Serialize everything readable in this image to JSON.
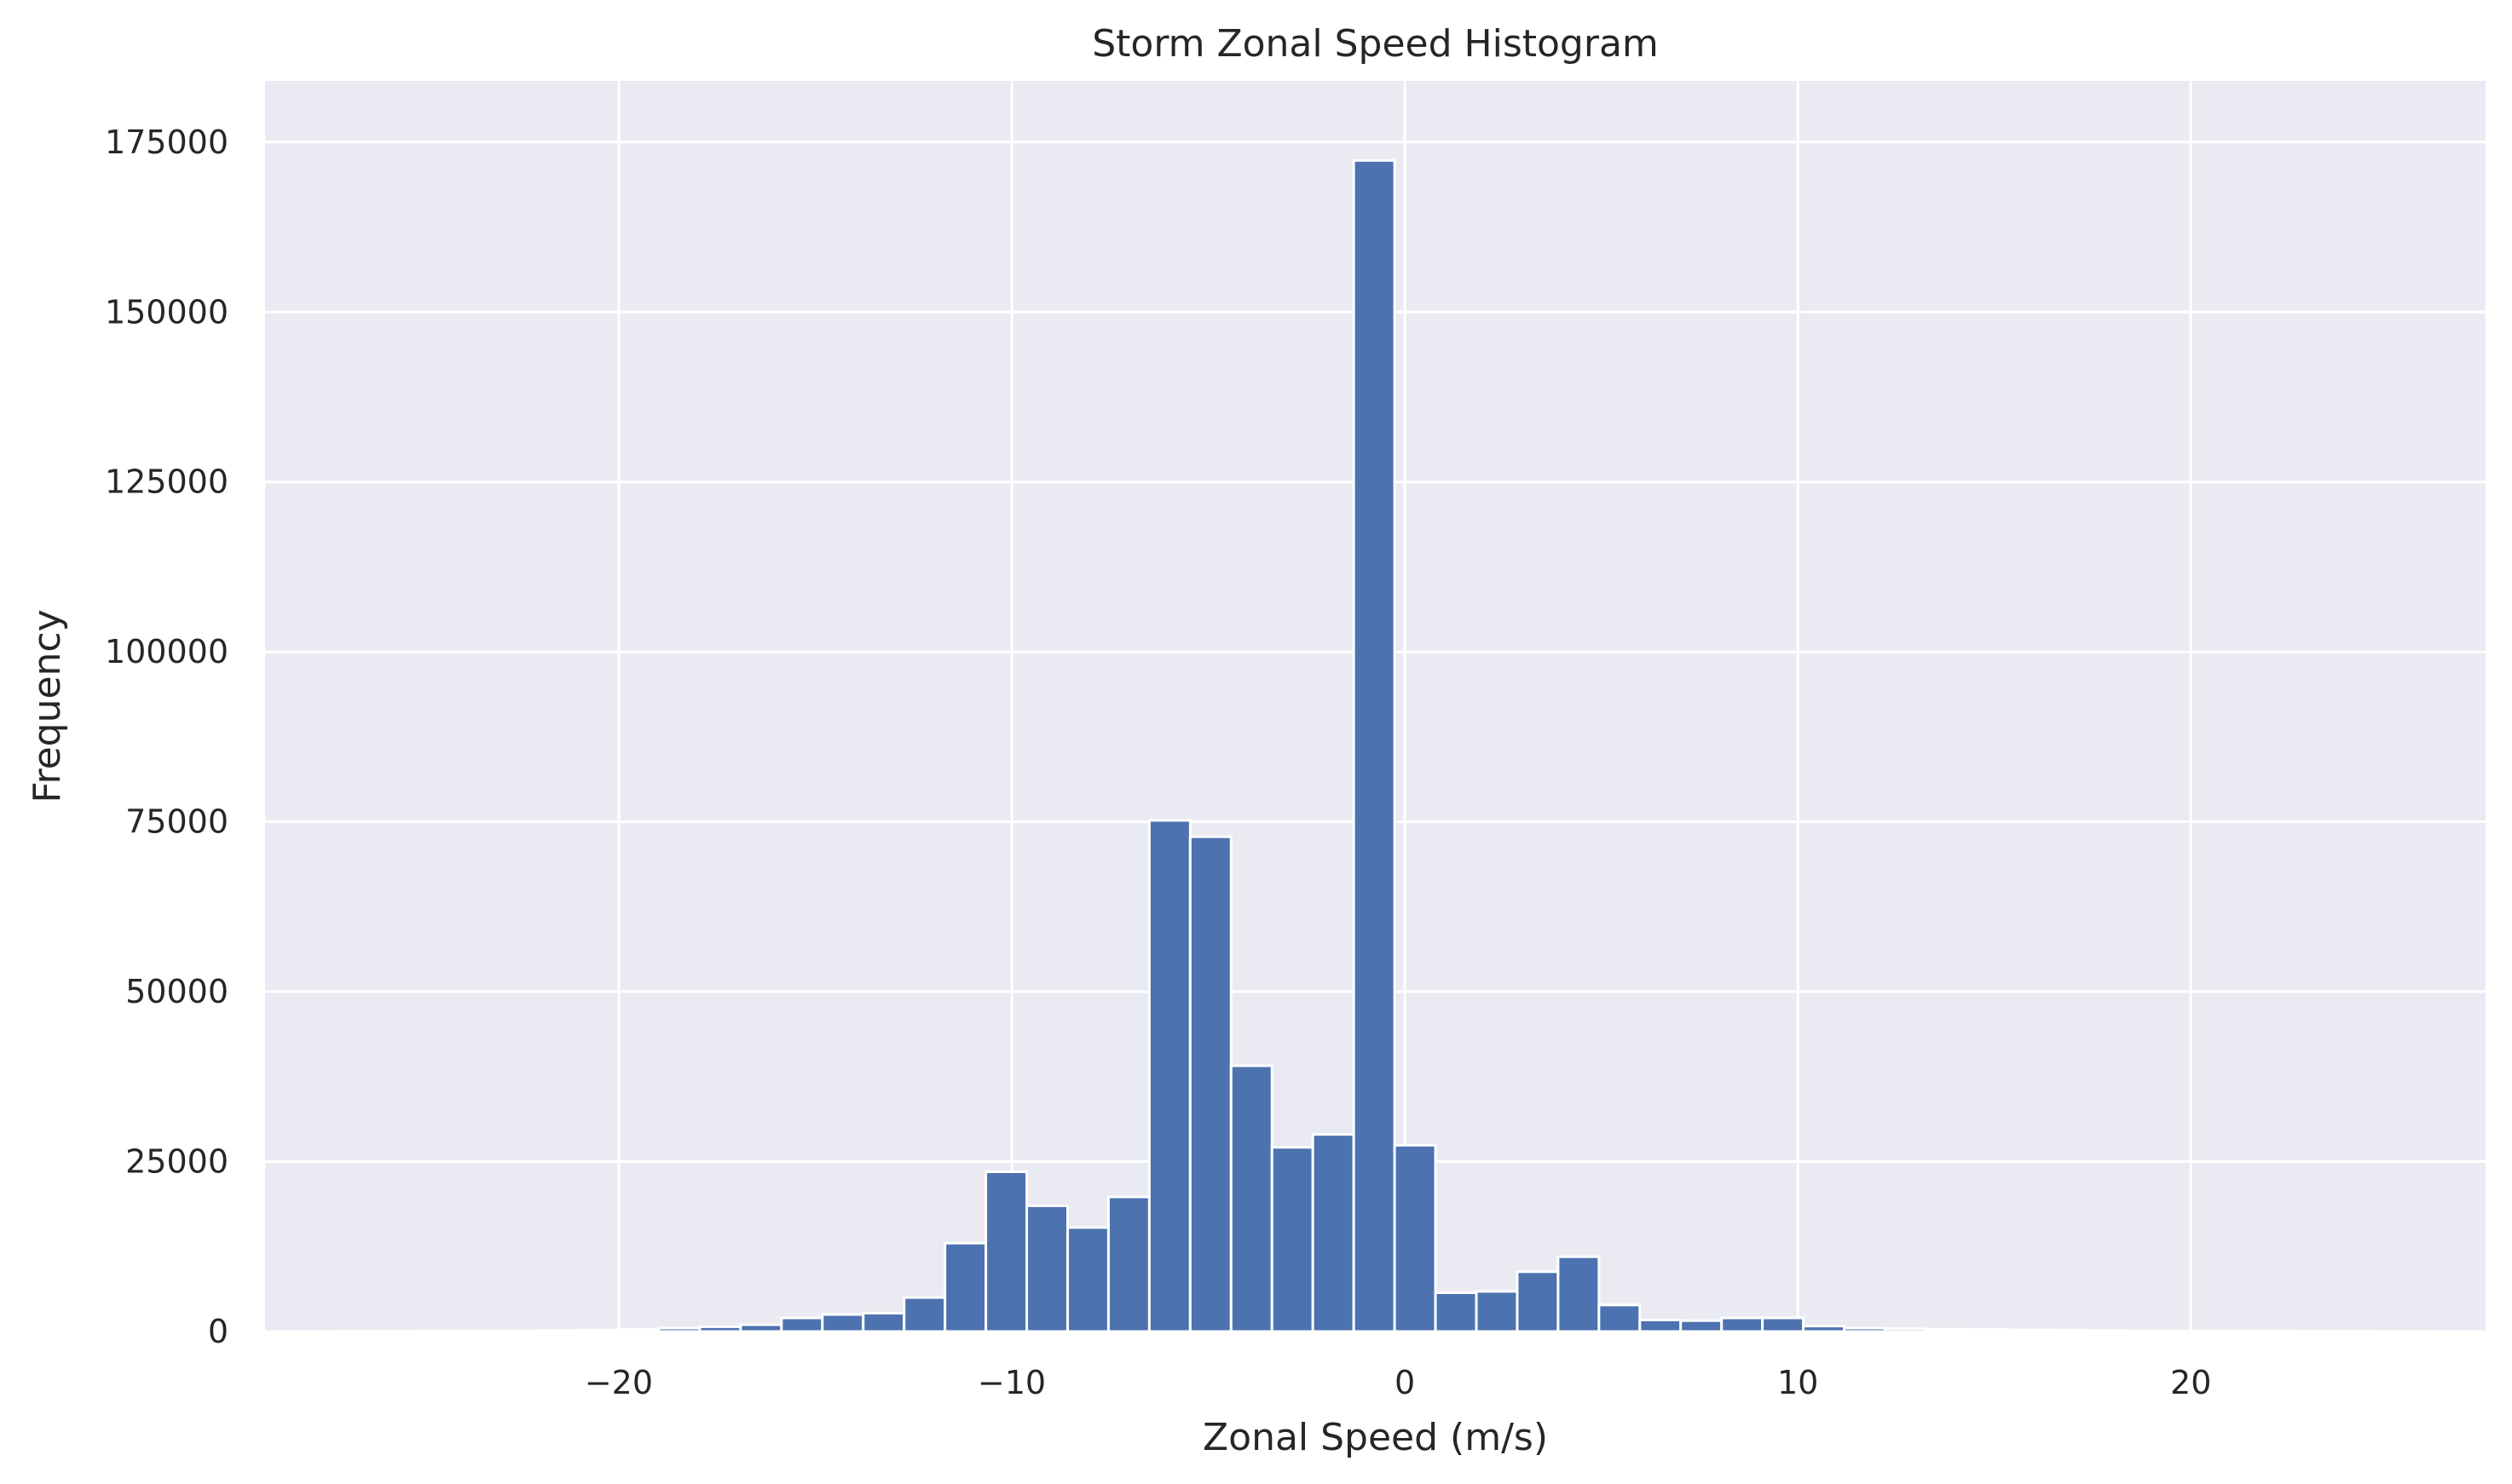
{
  "chart_data": {
    "type": "bar",
    "subtype": "histogram",
    "title": "Storm Zonal Speed Histogram",
    "xlabel": "Zonal Speed (m/s)",
    "ylabel": "Frequency",
    "xlim": [
      -29,
      27.5
    ],
    "ylim": [
      0,
      184000
    ],
    "xticks": [
      -20,
      -10,
      0,
      10,
      20
    ],
    "xtick_labels": [
      "−20",
      "−10",
      "0",
      "10",
      "20"
    ],
    "yticks": [
      0,
      25000,
      50000,
      75000,
      100000,
      125000,
      150000,
      175000
    ],
    "ytick_labels": [
      "0",
      "25000",
      "50000",
      "75000",
      "100000",
      "125000",
      "150000",
      "175000"
    ],
    "grid": true,
    "bin_edges": [
      -27.3,
      -26.26,
      -25.22,
      -24.18,
      -23.14,
      -22.1,
      -21.06,
      -20.02,
      -18.98,
      -17.94,
      -16.9,
      -15.86,
      -14.82,
      -13.78,
      -12.74,
      -11.7,
      -10.66,
      -9.62,
      -8.58,
      -7.54,
      -6.5,
      -5.46,
      -4.42,
      -3.38,
      -2.34,
      -1.3,
      -0.26,
      0.78,
      1.82,
      2.86,
      3.9,
      4.94,
      5.98,
      7.02,
      8.06,
      9.1,
      10.14,
      11.18,
      12.22,
      13.26,
      14.3,
      15.34,
      16.38,
      17.42,
      18.46,
      19.5,
      20.54,
      21.58,
      22.62,
      23.66,
      24.7,
      25.74
    ],
    "values": [
      20,
      30,
      40,
      60,
      90,
      150,
      200,
      300,
      500,
      700,
      1000,
      2000,
      2500,
      2700,
      5000,
      13000,
      23500,
      18500,
      15300,
      19800,
      75200,
      72800,
      39100,
      27100,
      29000,
      172300,
      27400,
      5700,
      5900,
      8800,
      11000,
      3900,
      1700,
      1600,
      2000,
      2000,
      800,
      500,
      400,
      350,
      300,
      250,
      200,
      150,
      100,
      80,
      60,
      40,
      30,
      20,
      10
    ],
    "colors": {
      "bar": "#4c72b0",
      "bar_edge": "#ffffff",
      "plot_background": "#eaeaf2",
      "grid": "#ffffff",
      "text": "#262626"
    }
  }
}
